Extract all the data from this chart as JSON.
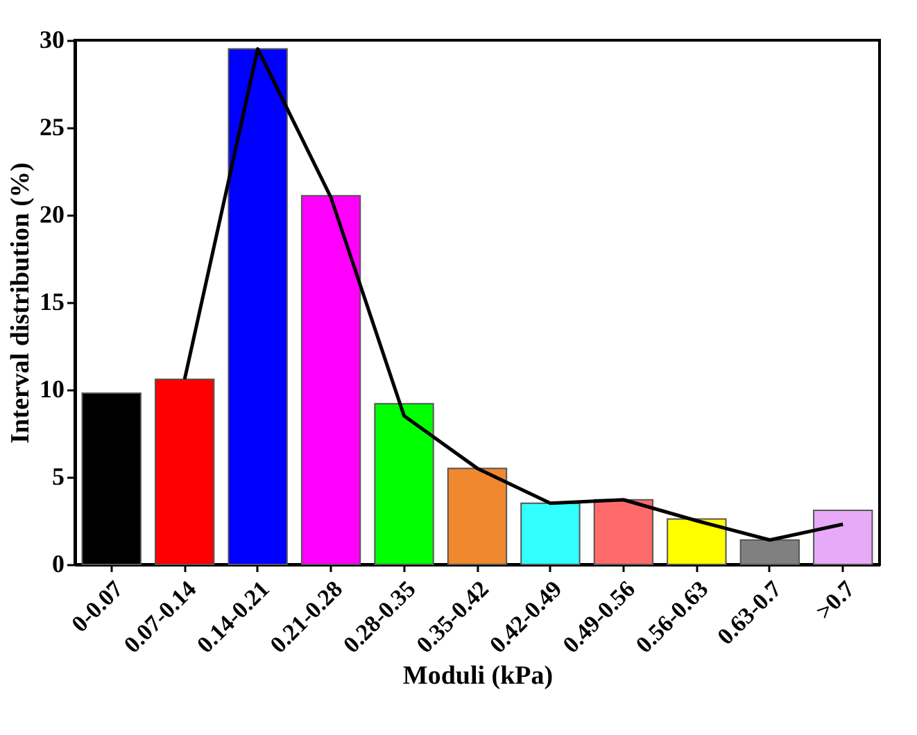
{
  "chart_data": {
    "type": "bar",
    "xlabel": "Moduli (kPa)",
    "ylabel": "Interval distribution (%)",
    "categories": [
      "0-0.07",
      "0.07-0.14",
      "0.14-0.21",
      "0.21-0.28",
      "0.28-0.35",
      "0.35-0.42",
      "0.42-0.49",
      "0.49-0.56",
      "0.56-0.63",
      "0.63-0.7",
      ">0.7"
    ],
    "ylim": [
      0,
      30
    ],
    "yticks": [
      0,
      5,
      10,
      15,
      20,
      25,
      30
    ],
    "series": [
      {
        "colors": [
          "#000000",
          "#ff0000",
          "#0000ff",
          "#ff00ff",
          "#00ff00",
          "#f0882f",
          "#33ffff",
          "#ff6b6b",
          "#ffff00",
          "#808080",
          "#e8aaf8"
        ],
        "values": [
          9.8,
          10.6,
          29.5,
          21.1,
          9.2,
          5.5,
          3.5,
          3.7,
          2.6,
          1.4,
          3.1
        ]
      },
      {
        "type": "line",
        "color": "#000000",
        "values": [
          null,
          10.6,
          29.5,
          21.0,
          8.5,
          5.5,
          3.5,
          3.7,
          2.5,
          1.4,
          2.3
        ]
      }
    ]
  }
}
